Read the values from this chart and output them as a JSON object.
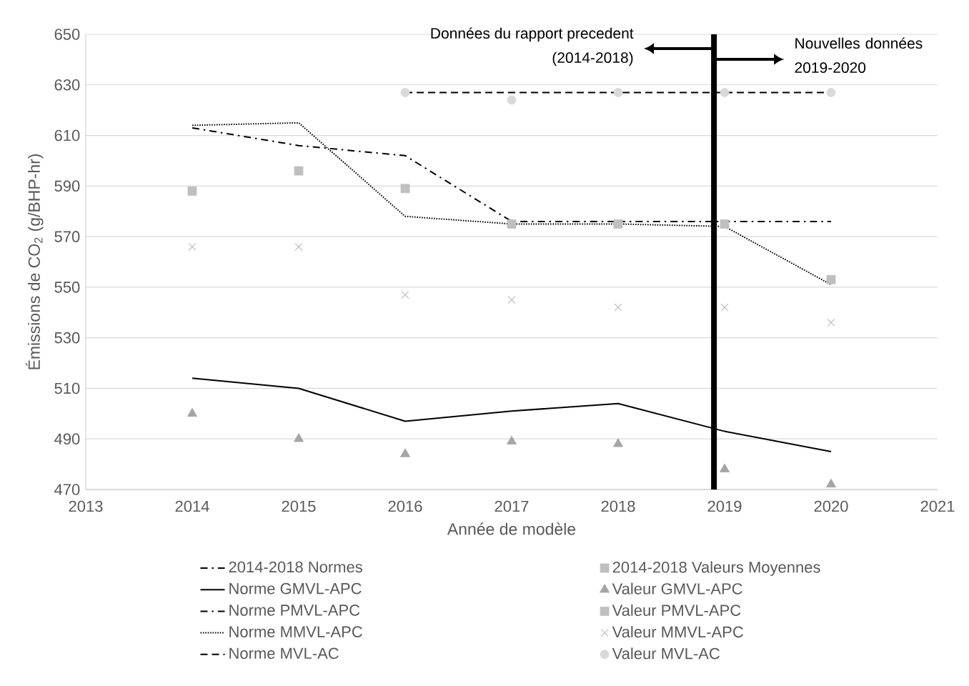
{
  "chart_data": {
    "type": "line",
    "xlabel": "Année de modèle",
    "ylabel": "Émissions de CO$_{2}$ (g/BHP-hr)",
    "xlim": [
      2013,
      2021
    ],
    "xticks": [
      2013,
      2014,
      2015,
      2016,
      2017,
      2018,
      2019,
      2020,
      2021
    ],
    "ylim": [
      470,
      650
    ],
    "yticks": [
      470,
      490,
      510,
      530,
      550,
      570,
      590,
      610,
      630,
      650
    ],
    "grid": "y",
    "legend": "bottom",
    "ref_lines": [
      {
        "axis": "x",
        "value": 2018.9,
        "color": "#000000"
      }
    ],
    "annotations": [
      "Données du rapport precedent (2014-2018)",
      "Nouvelles données 2019-2020"
    ],
    "series": [
      {
        "name": "2014-2018 Normes",
        "type": "line",
        "line_style": "dashdot",
        "color": "#000000",
        "x": [
          2014,
          2015,
          2016,
          2017,
          2018
        ],
        "values": [
          613,
          606,
          602,
          576,
          576
        ]
      },
      {
        "name": "2014-2018 Valeurs Moyennes",
        "type": "scatter",
        "marker": "square",
        "color": "#bfbfbf",
        "x": [
          2014,
          2015,
          2016,
          2017,
          2018
        ],
        "values": [
          588,
          596,
          589,
          575,
          575
        ]
      },
      {
        "name": "Norme GMVL-APC",
        "type": "line",
        "line_style": "solid",
        "color": "#000000",
        "x": [
          2014,
          2015,
          2016,
          2017,
          2018,
          2019,
          2020
        ],
        "values": [
          514,
          510,
          497,
          501,
          504,
          493,
          485
        ]
      },
      {
        "name": "Valeur GMVL-APC",
        "type": "scatter",
        "marker": "triangle",
        "color": "#a5a5a5",
        "x": [
          2014,
          2015,
          2016,
          2017,
          2018,
          2019,
          2020
        ],
        "values": [
          500,
          490,
          484,
          489,
          488,
          478,
          472
        ]
      },
      {
        "name": "Norme PMVL-APC",
        "type": "line",
        "line_style": "dashdot",
        "color": "#000000",
        "x": [
          2018,
          2019,
          2020
        ],
        "values": [
          576,
          576,
          576
        ]
      },
      {
        "name": "Valeur PMVL-APC",
        "type": "scatter",
        "marker": "square",
        "color": "#bfbfbf",
        "x": [
          2019,
          2020
        ],
        "values": [
          575,
          553
        ]
      },
      {
        "name": "Norme MMVL-APC",
        "type": "line",
        "line_style": "dotted",
        "color": "#000000",
        "x": [
          2014,
          2015,
          2016,
          2017,
          2018,
          2019,
          2020
        ],
        "values": [
          614,
          615,
          578,
          575,
          575,
          574,
          551
        ]
      },
      {
        "name": "Valeur MMVL-APC",
        "type": "scatter",
        "marker": "cross",
        "color": "#bfbfbf",
        "x": [
          2014,
          2015,
          2016,
          2017,
          2018,
          2019,
          2020
        ],
        "values": [
          566,
          566,
          547,
          545,
          542,
          542,
          536
        ]
      },
      {
        "name": "Norme MVL-AC",
        "type": "line",
        "line_style": "dashed",
        "color": "#000000",
        "x": [
          2016,
          2017,
          2018,
          2019,
          2020
        ],
        "values": [
          627,
          627,
          627,
          627,
          627
        ]
      },
      {
        "name": "Valeur MVL-AC",
        "type": "scatter",
        "marker": "circle",
        "color": "#d9d9d9",
        "x": [
          2016,
          2017,
          2018,
          2019,
          2020
        ],
        "values": [
          627,
          624,
          627,
          627,
          627
        ]
      }
    ]
  }
}
